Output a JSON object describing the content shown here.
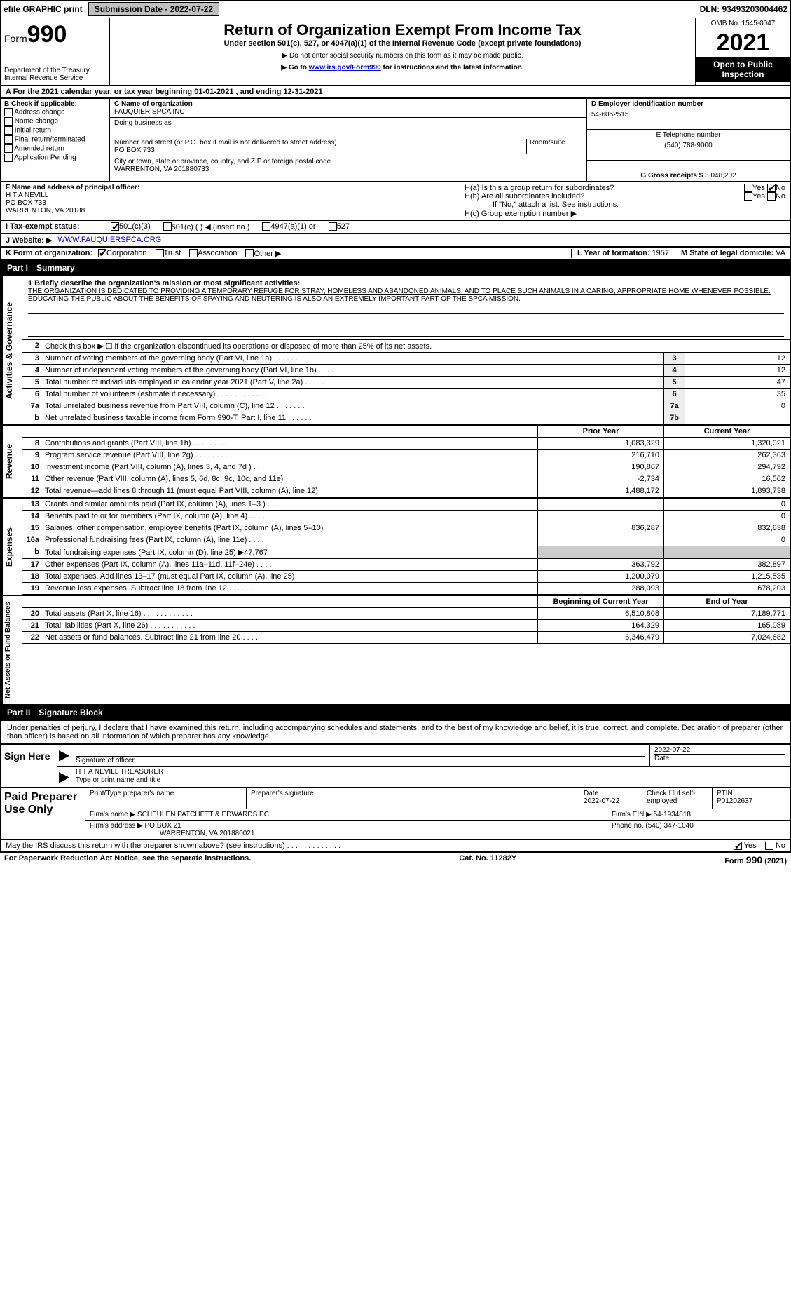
{
  "top": {
    "efile": "efile GRAPHIC print",
    "submission_btn": "Submission Date - 2022-07-22",
    "dln": "DLN: 93493203004462"
  },
  "header": {
    "form_label": "Form",
    "form_num": "990",
    "dept": "Department of the Treasury",
    "irs": "Internal Revenue Service",
    "title": "Return of Organization Exempt From Income Tax",
    "sub": "Under section 501(c), 527, or 4947(a)(1) of the Internal Revenue Code (except private foundations)",
    "note1": "▶ Do not enter social security numbers on this form as it may be made public.",
    "note2_prefix": "▶ Go to ",
    "note2_link": "www.irs.gov/Form990",
    "note2_suffix": " for instructions and the latest information.",
    "omb": "OMB No. 1545-0047",
    "year": "2021",
    "open": "Open to Public Inspection"
  },
  "rowA": "A For the 2021 calendar year, or tax year beginning 01-01-2021     , and ending 12-31-2021",
  "b": {
    "label": "B Check if applicable:",
    "opts": [
      "Address change",
      "Name change",
      "Initial return",
      "Final return/terminated",
      "Amended return",
      "Application Pending"
    ]
  },
  "c": {
    "name_label": "C Name of organization",
    "name": "FAUQUIER SPCA INC",
    "dba_label": "Doing business as",
    "addr_label": "Number and street (or P.O. box if mail is not delivered to street address)",
    "room_label": "Room/suite",
    "addr": "PO BOX 733",
    "city_label": "City or town, state or province, country, and ZIP or foreign postal code",
    "city": "WARRENTON, VA  201880733"
  },
  "d": {
    "label": "D Employer identification number",
    "val": "54-6052515"
  },
  "e": {
    "label": "E Telephone number",
    "val": "(540) 788-9000"
  },
  "g": {
    "label": "G Gross receipts $",
    "val": "3,048,202"
  },
  "f": {
    "label": "F  Name and address of principal officer:",
    "name": "H T A NEVILL",
    "addr1": "PO BOX 733",
    "addr2": "WARRENTON, VA  20188"
  },
  "h": {
    "a_label": "H(a)  Is this a group return for subordinates?",
    "a_yes": "Yes",
    "a_no": "No",
    "b_label": "H(b)  Are all subordinates included?",
    "b_yes": "Yes",
    "b_no": "No",
    "b_note": "If \"No,\" attach a list. See instructions.",
    "c_label": "H(c)  Group exemption number ▶"
  },
  "i": {
    "label": "I     Tax-exempt status:",
    "o1": "501(c)(3)",
    "o2": "501(c) (    ) ◀ (insert no.)",
    "o3": "4947(a)(1) or",
    "o4": "527"
  },
  "j": {
    "label": "J    Website: ▶",
    "val": "WWW.FAUQUIERSPCA.ORG"
  },
  "k": {
    "label": "K Form of organization:",
    "opts": [
      "Corporation",
      "Trust",
      "Association",
      "Other ▶"
    ],
    "l_label": "L Year of formation:",
    "l_val": "1957",
    "m_label": "M State of legal domicile:",
    "m_val": "VA"
  },
  "part1": {
    "num": "Part I",
    "title": "Summary"
  },
  "sides": {
    "gov": "Activities & Governance",
    "rev": "Revenue",
    "exp": "Expenses",
    "net": "Net Assets or Fund Balances"
  },
  "mission": {
    "label": "1  Briefly describe the organization's mission or most significant activities:",
    "text": "THE ORGANIZATION IS DEDICATED TO PROVIDING A TEMPORARY REFUGE FOR STRAY, HOMELESS AND ABANDONED ANIMALS, AND TO PLACE SUCH ANIMALS IN A CARING, APPROPRIATE HOME WHENEVER POSSIBLE. EDUCATING THE PUBLIC ABOUT THE BENEFITS OF SPAYING AND NEUTERING IS ALSO AN EXTREMELY IMPORTANT PART OF THE SPCA MISSION."
  },
  "gov_rows": [
    {
      "n": "2",
      "t": "Check this box ▶ ☐ if the organization discontinued its operations or disposed of more than 25% of its net assets.",
      "box": "",
      "val": ""
    },
    {
      "n": "3",
      "t": "Number of voting members of the governing body (Part VI, line 1a)   .    .    .    .    .    .    .    .",
      "box": "3",
      "val": "12"
    },
    {
      "n": "4",
      "t": "Number of independent voting members of the governing body (Part VI, line 1b)   .    .    .    .",
      "box": "4",
      "val": "12"
    },
    {
      "n": "5",
      "t": "Total number of individuals employed in calendar year 2021 (Part V, line 2a)   .    .    .    .    .",
      "box": "5",
      "val": "47"
    },
    {
      "n": "6",
      "t": "Total number of volunteers (estimate if necessary)   .    .    .    .    .    .    .    .    .    .    .    .",
      "box": "6",
      "val": "35"
    },
    {
      "n": "7a",
      "t": "Total unrelated business revenue from Part VIII, column (C), line 12   .    .    .    .    .    .    .",
      "box": "7a",
      "val": "0"
    },
    {
      "n": "b",
      "t": "Net unrelated business taxable income from Form 990-T, Part I, line 11   .    .    .    .    .    .",
      "box": "7b",
      "val": ""
    }
  ],
  "hdr_prior": "Prior Year",
  "hdr_current": "Current Year",
  "rev_rows": [
    {
      "n": "8",
      "t": "Contributions and grants (Part VIII, line 1h)   .    .    .    .    .    .    .    .",
      "c1": "1,083,329",
      "c2": "1,320,021"
    },
    {
      "n": "9",
      "t": "Program service revenue (Part VIII, line 2g)   .    .    .    .    .    .    .    .",
      "c1": "216,710",
      "c2": "262,363"
    },
    {
      "n": "10",
      "t": "Investment income (Part VIII, column (A), lines 3, 4, and 7d )   .    .    .",
      "c1": "190,867",
      "c2": "294,792"
    },
    {
      "n": "11",
      "t": "Other revenue (Part VIII, column (A), lines 5, 6d, 8c, 9c, 10c, and 11e)",
      "c1": "-2,734",
      "c2": "16,562"
    },
    {
      "n": "12",
      "t": "Total revenue—add lines 8 through 11 (must equal Part VIII, column (A), line 12)",
      "c1": "1,488,172",
      "c2": "1,893,738"
    }
  ],
  "exp_rows": [
    {
      "n": "13",
      "t": "Grants and similar amounts paid (Part IX, column (A), lines 1–3 )   .    .    .",
      "c1": "",
      "c2": "0"
    },
    {
      "n": "14",
      "t": "Benefits paid to or for members (Part IX, column (A), line 4)   .    .    .    .",
      "c1": "",
      "c2": "0"
    },
    {
      "n": "15",
      "t": "Salaries, other compensation, employee benefits (Part IX, column (A), lines 5–10)",
      "c1": "836,287",
      "c2": "832,638"
    },
    {
      "n": "16a",
      "t": "Professional fundraising fees (Part IX, column (A), line 11e)   .    .    .    .",
      "c1": "",
      "c2": "0"
    },
    {
      "n": "b",
      "t": "Total fundraising expenses (Part IX, column (D), line 25) ▶47,767",
      "c1": "gray",
      "c2": "gray"
    },
    {
      "n": "17",
      "t": "Other expenses (Part IX, column (A), lines 11a–11d, 11f–24e)   .    .    .    .",
      "c1": "363,792",
      "c2": "382,897"
    },
    {
      "n": "18",
      "t": "Total expenses. Add lines 13–17 (must equal Part IX, column (A), line 25)",
      "c1": "1,200,079",
      "c2": "1,215,535"
    },
    {
      "n": "19",
      "t": "Revenue less expenses. Subtract line 18 from line 12   .    .    .    .    .    .",
      "c1": "288,093",
      "c2": "678,203"
    }
  ],
  "hdr_begin": "Beginning of Current Year",
  "hdr_end": "End of Year",
  "net_rows": [
    {
      "n": "20",
      "t": "Total assets (Part X, line 16)   .    .    .    .    .    .    .    .    .    .    .    .",
      "c1": "6,510,808",
      "c2": "7,189,771"
    },
    {
      "n": "21",
      "t": "Total liabilities (Part X, line 26)   .    .    .    .    .    .    .    .    .    .    .",
      "c1": "164,329",
      "c2": "165,089"
    },
    {
      "n": "22",
      "t": "Net assets or fund balances. Subtract line 21 from line 20   .    .    .    .",
      "c1": "6,346,479",
      "c2": "7,024,682"
    }
  ],
  "part2": {
    "num": "Part II",
    "title": "Signature Block"
  },
  "sig_para": "Under penalties of perjury, I declare that I have examined this return, including accompanying schedules and statements, and to the best of my knowledge and belief, it is true, correct, and complete. Declaration of preparer (other than officer) is based on all information of which preparer has any knowledge.",
  "sign": {
    "here": "Sign Here",
    "sig_label": "Signature of officer",
    "date_val": "2022-07-22",
    "date_label": "Date",
    "name": "H T A NEVILL TREASURER",
    "name_label": "Type or print name and title"
  },
  "prep": {
    "label": "Paid Preparer Use Only",
    "r1_name_label": "Print/Type preparer's name",
    "r1_sig_label": "Preparer's signature",
    "r1_date_label": "Date",
    "r1_date": "2022-07-22",
    "r1_check_label": "Check ☐ if self-employed",
    "r1_ptin_label": "PTIN",
    "r1_ptin": "P01202637",
    "r2_firm_label": "Firm's name    ▶",
    "r2_firm": "SCHEULEN PATCHETT & EDWARDS PC",
    "r2_ein_label": "Firm's EIN ▶",
    "r2_ein": "54-1934818",
    "r3_addr_label": "Firm's address ▶",
    "r3_addr1": "PO BOX 21",
    "r3_addr2": "WARRENTON, VA  201880021",
    "r3_phone_label": "Phone no.",
    "r3_phone": "(540) 347-1040"
  },
  "may": {
    "text": "May the IRS discuss this return with the preparer shown above? (see instructions)    .    .    .    .    .    .    .    .    .    .    .    .    .",
    "yes": "Yes",
    "no": "No"
  },
  "footer": {
    "left": "For Paperwork Reduction Act Notice, see the separate instructions.",
    "mid": "Cat. No. 11282Y",
    "right_form": "Form",
    "right_num": "990",
    "right_year": "(2021)"
  }
}
